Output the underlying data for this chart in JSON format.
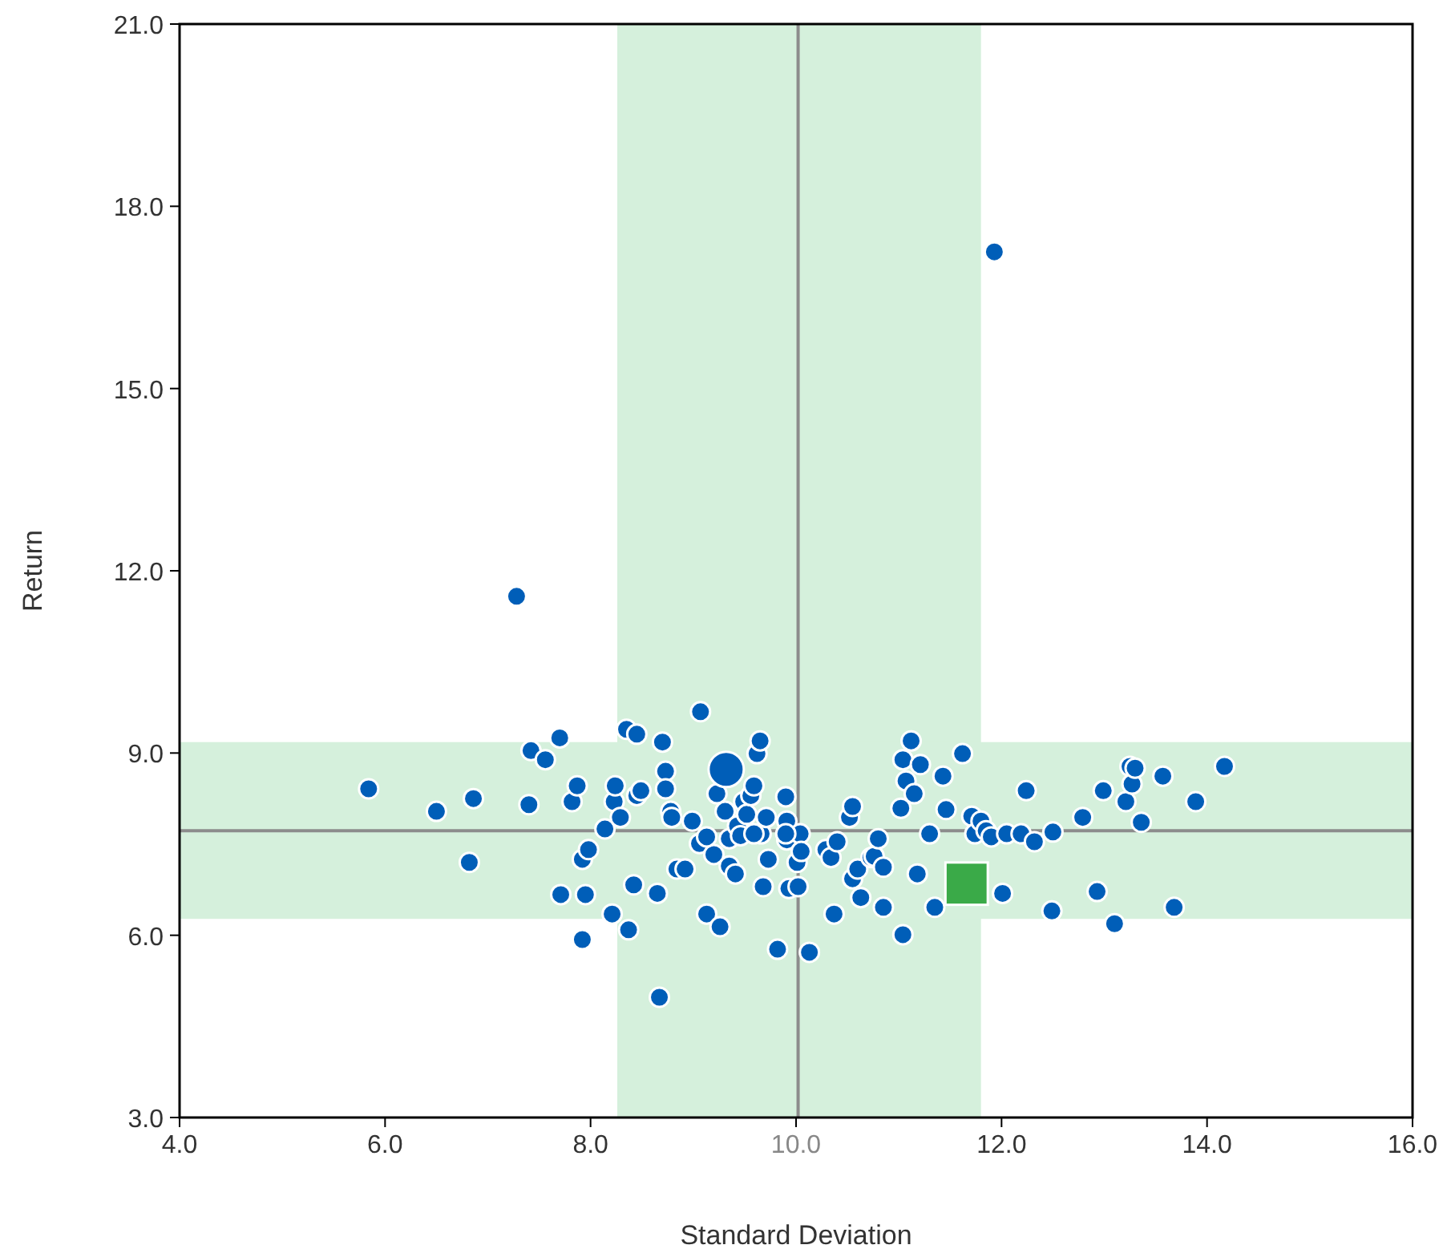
{
  "chart_data": {
    "type": "scatter",
    "xlabel": "Standard Deviation",
    "ylabel": "Return",
    "xlim": [
      4,
      16
    ],
    "ylim": [
      3,
      21
    ],
    "xticks": [
      {
        "value": 4,
        "label": "4.0"
      },
      {
        "value": 6,
        "label": "6.0"
      },
      {
        "value": 8,
        "label": "8.0"
      },
      {
        "value": 10,
        "label": "10.0"
      },
      {
        "value": 12,
        "label": "12.0"
      },
      {
        "value": 14,
        "label": "14.0"
      },
      {
        "value": 16,
        "label": "16.0"
      }
    ],
    "yticks": [
      {
        "value": 3,
        "label": "3.0"
      },
      {
        "value": 6,
        "label": "6.0"
      },
      {
        "value": 9,
        "label": "9.0"
      },
      {
        "value": 12,
        "label": "12.0"
      },
      {
        "value": 15,
        "label": "15.0"
      },
      {
        "value": 18,
        "label": "18.0"
      },
      {
        "value": 21,
        "label": "21.0"
      }
    ],
    "grid": false,
    "bands": [
      {
        "axis": "x",
        "from": 8.26,
        "to": 11.8,
        "color": "#d5f0dc"
      },
      {
        "axis": "y",
        "from": 6.27,
        "to": 9.18,
        "color": "#d5f0dc"
      }
    ],
    "ref_lines": [
      {
        "axis": "x",
        "value": 10.02,
        "color": "#8c8c8c"
      },
      {
        "axis": "y",
        "value": 7.72,
        "color": "#8c8c8c"
      }
    ],
    "series": [
      {
        "color": "#005eb8",
        "marker": "circle",
        "x": [
          5.84,
          6.5,
          6.86,
          6.82,
          7.28,
          7.42,
          7.4,
          7.56,
          7.7,
          7.71,
          7.82,
          7.92,
          7.95,
          7.87,
          7.92,
          7.98,
          8.14,
          8.21,
          8.23,
          8.24,
          8.29,
          8.35,
          8.45,
          8.37,
          8.42,
          8.45,
          8.65,
          8.67,
          8.7,
          8.73,
          8.73,
          8.78,
          8.79,
          8.84,
          8.92,
          8.99,
          9.07,
          9.06,
          9.13,
          9.2,
          9.26,
          9.23,
          9.31,
          9.35,
          9.35,
          9.43,
          9.41,
          9.46,
          9.49,
          9.52,
          9.56,
          9.59,
          9.62,
          9.65,
          9.66,
          9.68,
          9.71,
          9.73,
          9.82,
          9.9,
          9.91,
          9.91,
          9.93,
          10.01,
          10.04,
          10.05,
          10.02,
          10.13,
          10.29,
          10.34,
          10.4,
          10.52,
          10.55,
          10.55,
          10.6,
          10.63,
          10.73,
          10.76,
          10.8,
          10.85,
          10.85,
          11.02,
          11.04,
          11.07,
          11.04,
          11.12,
          11.15,
          11.18,
          11.21,
          11.3,
          11.35,
          11.43,
          11.46,
          11.62,
          11.71,
          11.74,
          11.8,
          11.85,
          11.9,
          12.01,
          12.05,
          12.19,
          12.24,
          12.32,
          12.49,
          12.5,
          12.79,
          12.99,
          12.93,
          13.1,
          13.21,
          13.25,
          13.27,
          13.3,
          13.36,
          13.57,
          13.68,
          13.89,
          14.17,
          11.93,
          9.9,
          9.59,
          9.13,
          8.49,
          10.37
        ],
        "values": [
          8.41,
          8.04,
          8.25,
          7.2,
          11.58,
          9.04,
          8.15,
          8.89,
          9.25,
          6.67,
          8.2,
          5.93,
          6.67,
          8.46,
          7.25,
          7.41,
          7.75,
          6.35,
          8.2,
          8.46,
          7.94,
          9.39,
          9.31,
          6.09,
          6.83,
          8.3,
          6.69,
          4.98,
          9.18,
          8.7,
          8.41,
          8.04,
          7.94,
          7.09,
          7.09,
          7.88,
          9.68,
          7.51,
          6.35,
          7.33,
          6.14,
          8.33,
          8.04,
          7.59,
          7.14,
          7.8,
          7.01,
          7.64,
          8.2,
          7.99,
          8.3,
          8.46,
          8.99,
          9.2,
          7.67,
          6.8,
          7.94,
          7.25,
          5.77,
          8.28,
          7.88,
          7.57,
          6.77,
          7.2,
          7.67,
          7.38,
          6.8,
          5.72,
          7.41,
          7.28,
          7.54,
          7.94,
          8.12,
          6.93,
          7.09,
          6.62,
          7.28,
          7.3,
          7.59,
          7.12,
          6.46,
          8.09,
          8.89,
          8.54,
          6.01,
          9.2,
          8.33,
          7.01,
          8.81,
          7.67,
          6.46,
          8.62,
          8.07,
          8.99,
          7.96,
          7.67,
          7.88,
          7.72,
          7.62,
          6.69,
          7.67,
          7.67,
          8.38,
          7.54,
          6.4,
          7.7,
          7.94,
          8.38,
          6.72,
          6.19,
          8.2,
          8.78,
          8.49,
          8.75,
          7.86,
          8.62,
          6.46,
          8.2,
          8.78,
          17.25,
          7.67,
          7.67,
          7.62,
          8.38,
          6.35
        ]
      },
      {
        "color": "#005eb8",
        "marker": "circle",
        "x": [
          9.32
        ],
        "values": [
          8.73
        ]
      },
      {
        "color": "#3aaa48",
        "marker": "square",
        "x": [
          11.66
        ],
        "values": [
          6.85
        ]
      }
    ]
  }
}
